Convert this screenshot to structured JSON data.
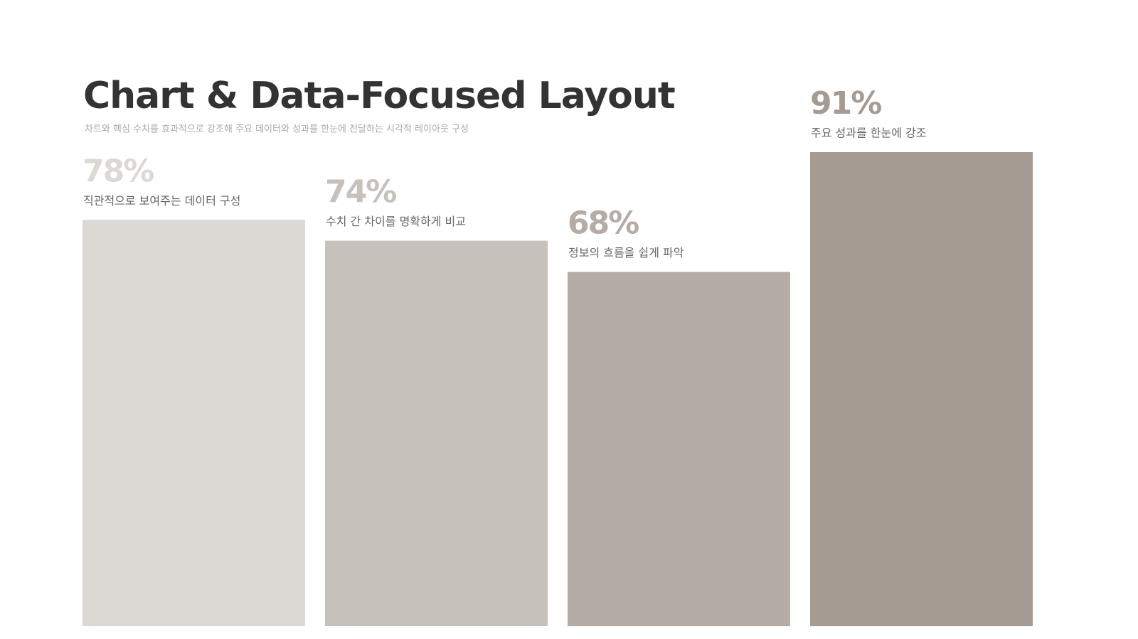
{
  "chart_data": {
    "type": "bar",
    "title": "Chart & Data-Focused Layout",
    "subtitle": "차트와 핵심 수치를 효과적으로 강조해 주요 데이터와 성과를 한눈에 전달하는 시각적 레이아웃 구성",
    "categories": [
      "직관적으로 보여주는 데이터 구성",
      "수치 간 차이를 명확하게 비교",
      "정보의 흐름을 쉽게 파악",
      "주요 성과를 한눈에 강조"
    ],
    "values": [
      78,
      74,
      68,
      91
    ],
    "value_labels": [
      "78%",
      "74%",
      "68%",
      "91%"
    ],
    "colors": [
      "#dcd9d5",
      "#c6c1bb",
      "#b5aca5",
      "#a59b92"
    ]
  }
}
